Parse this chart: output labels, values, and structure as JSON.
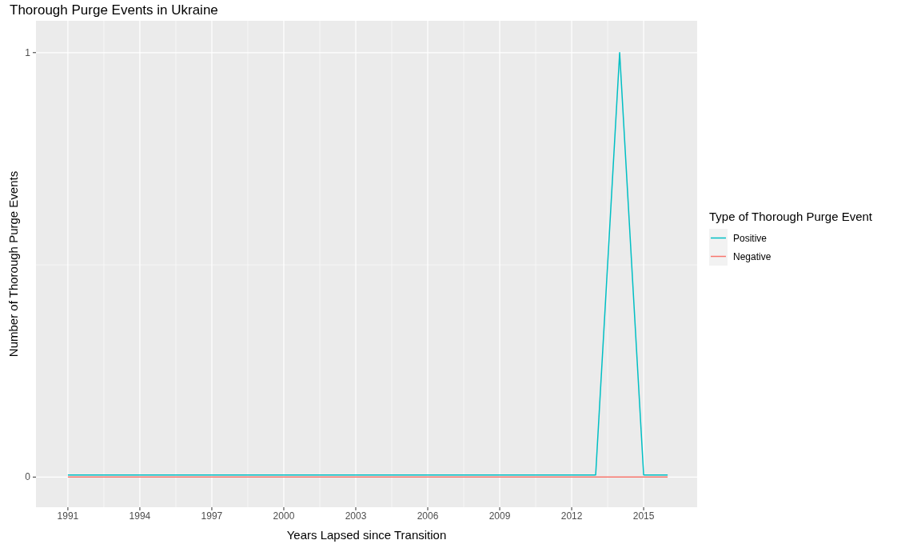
{
  "chart_data": {
    "type": "line",
    "title": "Thorough Purge Events in Ukraine",
    "xlabel": "Years Lapsed since Transition",
    "ylabel": "Number of Thorough Purge Events",
    "legend_title": "Type of Thorough Purge Event",
    "x": [
      1991,
      1992,
      1993,
      1994,
      1995,
      1996,
      1997,
      1998,
      1999,
      2000,
      2001,
      2002,
      2003,
      2004,
      2005,
      2006,
      2007,
      2008,
      2009,
      2010,
      2011,
      2012,
      2013,
      2014,
      2015,
      2016
    ],
    "series": [
      {
        "name": "Positive",
        "color": "#00bfc4",
        "values": [
          0.005,
          0.005,
          0.005,
          0.005,
          0.005,
          0.005,
          0.005,
          0.005,
          0.005,
          0.005,
          0.005,
          0.005,
          0.005,
          0.005,
          0.005,
          0.005,
          0.005,
          0.005,
          0.005,
          0.005,
          0.005,
          0.005,
          0.005,
          1,
          0.005,
          0.005
        ]
      },
      {
        "name": "Negative",
        "color": "#f8766d",
        "values": [
          0,
          0,
          0,
          0,
          0,
          0,
          0,
          0,
          0,
          0,
          0,
          0,
          0,
          0,
          0,
          0,
          0,
          0,
          0,
          0,
          0,
          0,
          0,
          0,
          0,
          0
        ]
      }
    ],
    "xlim": [
      1989.67,
      2017.23
    ],
    "xticks": [
      1991,
      1994,
      1997,
      2000,
      2003,
      2006,
      2009,
      2012,
      2015
    ],
    "ylim": [
      -0.071,
      1.075
    ],
    "yticks": [
      0,
      1
    ],
    "grid": true,
    "legend": "right",
    "marker": "none",
    "line_style": "solid"
  }
}
